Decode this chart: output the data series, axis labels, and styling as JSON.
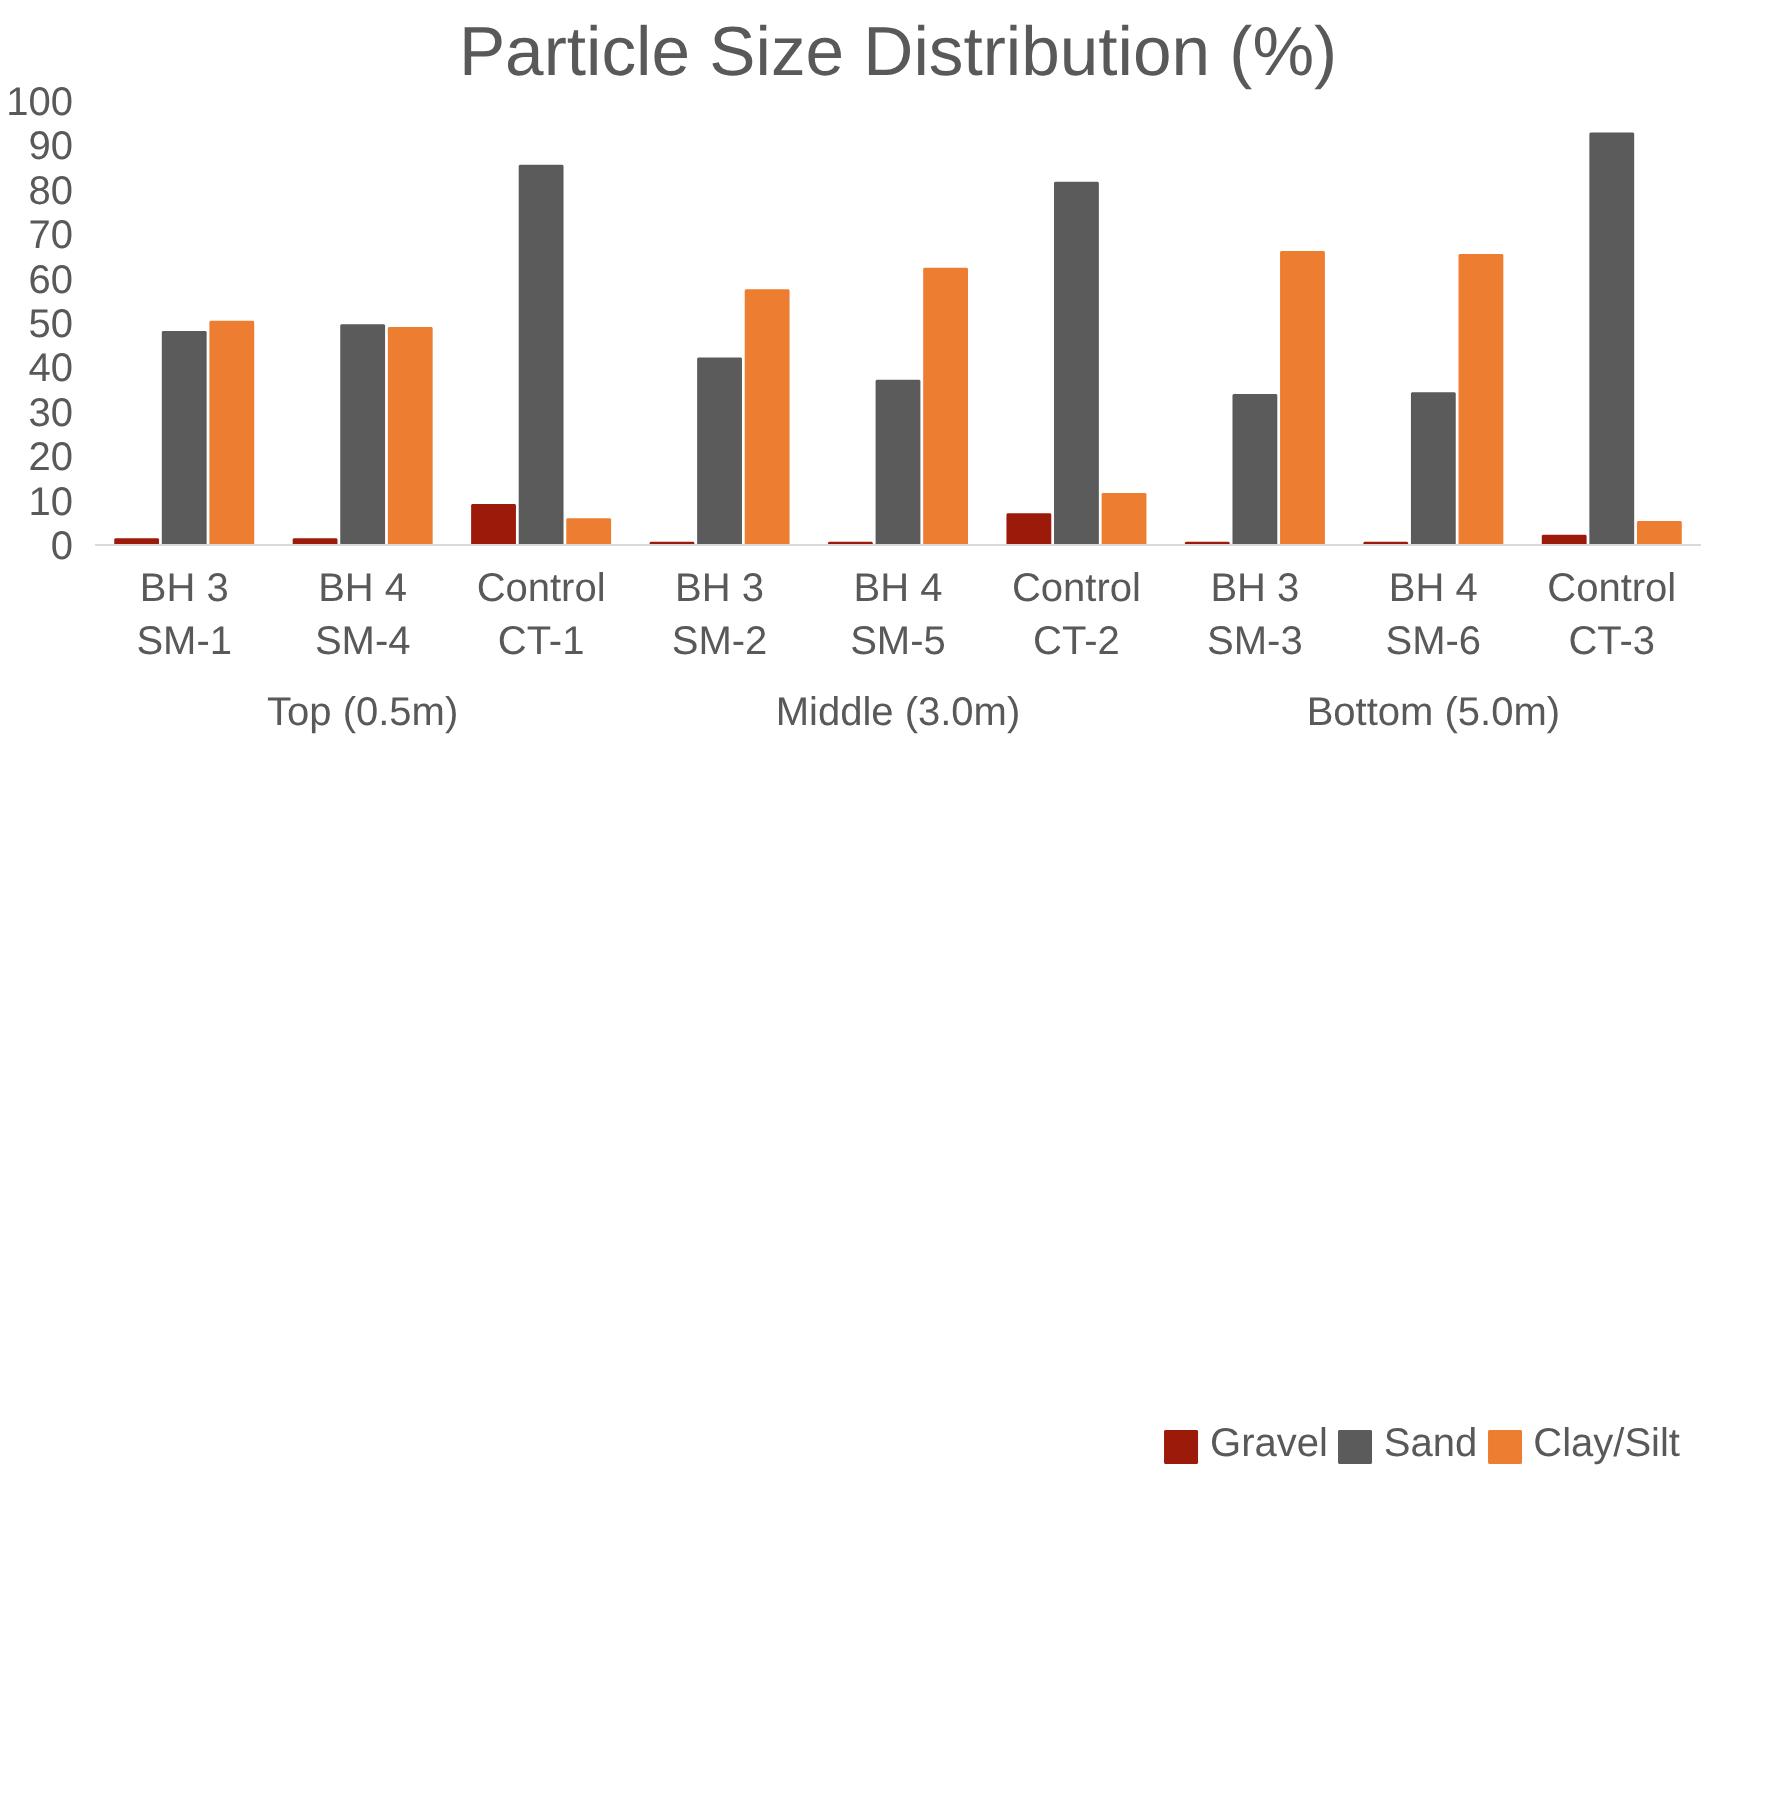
{
  "chart_data": {
    "type": "bar",
    "title": "Particle Size Distribution (%)",
    "categories": [
      "BH 3\nSM-1",
      "BH 4\nSM-4",
      "Control\nCT-1",
      "BH 3\nSM-2",
      "BH 4\nSM-5",
      "Control\nCT-2",
      "BH 3\nSM-3",
      "BH 4\nSM-6",
      "Control\nCT-3"
    ],
    "annotations": [
      "Top (0.5m)",
      "Middle (3.0m)",
      "Bottom (5.0m)"
    ],
    "series": [
      {
        "name": "Gravel",
        "color": "#9c1a0a",
        "values": [
          1.3,
          1.3,
          9.0,
          0.5,
          0.5,
          6.9,
          0.5,
          0.5,
          2.1
        ]
      },
      {
        "name": "Sand",
        "color": "#5b5b5b",
        "values": [
          48.0,
          49.5,
          85.4,
          42.0,
          37.0,
          81.6,
          33.8,
          34.2,
          92.7
        ]
      },
      {
        "name": "Clay/Silt",
        "color": "#ed7d31",
        "values": [
          50.3,
          48.9,
          5.8,
          57.4,
          62.2,
          11.5,
          66.0,
          65.3,
          5.2
        ]
      }
    ],
    "ylim": [
      0,
      100
    ],
    "yticks": [
      0,
      10,
      20,
      30,
      40,
      50,
      60,
      70,
      80,
      90,
      100
    ],
    "grid": false,
    "legend": "bottom"
  }
}
